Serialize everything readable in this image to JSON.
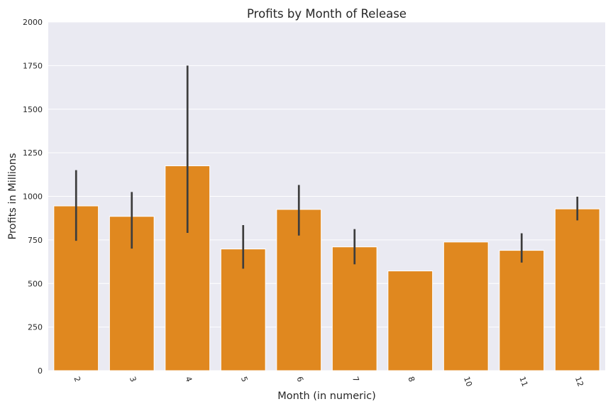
{
  "chart_data": {
    "type": "bar",
    "title": "Profits by Month of Release",
    "xlabel": "Month (in numeric)",
    "ylabel": "Profits in Millions",
    "categories": [
      "2",
      "3",
      "4",
      "5",
      "6",
      "7",
      "8",
      "10",
      "11",
      "12"
    ],
    "values": [
      945,
      885,
      1175,
      698,
      925,
      710,
      572,
      738,
      690,
      928
    ],
    "error_low": [
      745,
      700,
      790,
      585,
      775,
      610,
      null,
      null,
      620,
      862
    ],
    "error_high": [
      1150,
      1025,
      1750,
      835,
      1065,
      812,
      null,
      null,
      788,
      998
    ],
    "yticks": [
      0,
      250,
      500,
      750,
      1000,
      1250,
      1500,
      1750,
      2000
    ],
    "ylim": [
      0,
      2000
    ],
    "grid": true,
    "bar_color": "#e0881f",
    "error_color": "#3d3d3d",
    "plot_background": "#eaeaf2"
  }
}
